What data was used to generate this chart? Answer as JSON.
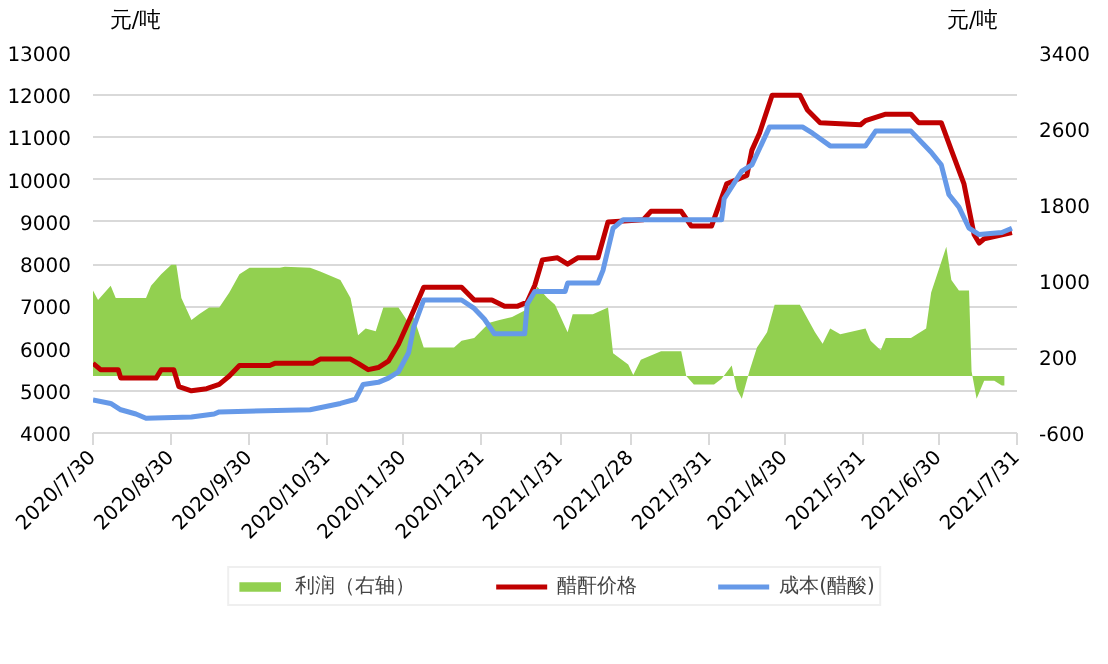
{
  "chart_data": {
    "type": "line",
    "ylabel": "元/吨",
    "y2label": "元/吨",
    "xlim": [
      "2020-07-30",
      "2021-07-31"
    ],
    "xticks": [
      {
        "value": "2020-07-30",
        "label": "2020/7/30"
      },
      {
        "value": "2020-08-30",
        "label": "2020/8/30"
      },
      {
        "value": "2020-09-30",
        "label": "2020/9/30"
      },
      {
        "value": "2020-10-31",
        "label": "2020/10/31"
      },
      {
        "value": "2020-11-30",
        "label": "2020/11/30"
      },
      {
        "value": "2020-12-31",
        "label": "2020/12/31"
      },
      {
        "value": "2021-01-31",
        "label": "2021/1/31"
      },
      {
        "value": "2021-02-28",
        "label": "2021/2/28"
      },
      {
        "value": "2021-03-31",
        "label": "2021/3/31"
      },
      {
        "value": "2021-04-30",
        "label": "2021/4/30"
      },
      {
        "value": "2021-05-31",
        "label": "2021/5/31"
      },
      {
        "value": "2021-06-30",
        "label": "2021/6/30"
      },
      {
        "value": "2021-07-31",
        "label": "2021/7/31"
      }
    ],
    "ylim": [
      4000,
      13000
    ],
    "yticks": [
      4000,
      5000,
      6000,
      7000,
      8000,
      9000,
      10000,
      11000,
      12000,
      13000
    ],
    "y2lim": [
      -600,
      3400
    ],
    "y2ticks": [
      -600,
      200,
      1000,
      1800,
      2600,
      3400
    ],
    "grid": "y",
    "legend": "bottom",
    "series": [
      {
        "name": "利润（右轴）",
        "type": "area",
        "axis": "y2",
        "color": "#92d050",
        "x": [
          "2020-07-30",
          "2020-08-01",
          "2020-08-06",
          "2020-08-08",
          "2020-08-20",
          "2020-08-22",
          "2020-08-26",
          "2020-08-30",
          "2020-09-01",
          "2020-09-03",
          "2020-09-07",
          "2020-09-10",
          "2020-09-14",
          "2020-09-18",
          "2020-09-22",
          "2020-09-26",
          "2020-09-30",
          "2020-10-12",
          "2020-10-14",
          "2020-10-24",
          "2020-10-28",
          "2020-11-05",
          "2020-11-09",
          "2020-11-12",
          "2020-11-15",
          "2020-11-19",
          "2020-11-22",
          "2020-11-28",
          "2020-12-02",
          "2020-12-04",
          "2020-12-08",
          "2020-12-20",
          "2020-12-23",
          "2020-12-28",
          "2021-01-03",
          "2021-01-07",
          "2021-01-12",
          "2021-01-17",
          "2021-01-20",
          "2021-01-22",
          "2021-01-26",
          "2021-01-29",
          "2021-02-03",
          "2021-02-05",
          "2021-02-13",
          "2021-02-19",
          "2021-02-21",
          "2021-02-27",
          "2021-03-01",
          "2021-03-04",
          "2021-03-12",
          "2021-03-20",
          "2021-03-22",
          "2021-03-25",
          "2021-04-02",
          "2021-04-05",
          "2021-04-09",
          "2021-04-11",
          "2021-04-13",
          "2021-04-16",
          "2021-04-19",
          "2021-04-23",
          "2021-04-26",
          "2021-05-06",
          "2021-05-12",
          "2021-05-15",
          "2021-05-18",
          "2021-05-22",
          "2021-06-01",
          "2021-06-03",
          "2021-06-07",
          "2021-06-09",
          "2021-06-19",
          "2021-06-25",
          "2021-06-27",
          "2021-07-03",
          "2021-07-05",
          "2021-07-08",
          "2021-07-12",
          "2021-07-13",
          "2021-07-15",
          "2021-07-18",
          "2021-07-22",
          "2021-07-25",
          "2021-07-26"
        ],
        "values": [
          900,
          800,
          950,
          820,
          820,
          950,
          1070,
          1170,
          1170,
          820,
          590,
          650,
          720,
          720,
          880,
          1070,
          1140,
          1140,
          1150,
          1140,
          1100,
          1010,
          820,
          430,
          500,
          470,
          720,
          720,
          560,
          620,
          300,
          300,
          370,
          400,
          560,
          590,
          620,
          690,
          820,
          940,
          820,
          750,
          460,
          650,
          650,
          720,
          240,
          120,
          10,
          170,
          260,
          260,
          0,
          -90,
          -90,
          -30,
          110,
          -140,
          -240,
          50,
          300,
          460,
          750,
          750,
          460,
          340,
          500,
          440,
          500,
          370,
          270,
          400,
          400,
          500,
          880,
          1360,
          1010,
          900,
          900,
          50,
          -240,
          -50,
          -50,
          -100,
          -100
        ]
      },
      {
        "name": "醋酐价格",
        "color": "#c00000",
        "x": [
          "2020-07-30",
          "2020-08-02",
          "2020-08-09",
          "2020-08-10",
          "2020-08-24",
          "2020-08-26",
          "2020-08-31",
          "2020-09-02",
          "2020-09-07",
          "2020-09-13",
          "2020-09-18",
          "2020-09-22",
          "2020-09-26",
          "2020-10-08",
          "2020-10-10",
          "2020-10-25",
          "2020-10-28",
          "2020-11-09",
          "2020-11-12",
          "2020-11-16",
          "2020-11-20",
          "2020-11-24",
          "2020-11-28",
          "2020-12-04",
          "2020-12-08",
          "2020-12-23",
          "2020-12-28",
          "2021-01-04",
          "2021-01-09",
          "2021-01-14",
          "2021-01-18",
          "2021-01-21",
          "2021-01-24",
          "2021-01-30",
          "2021-02-03",
          "2021-02-07",
          "2021-02-15",
          "2021-02-19",
          "2021-03-05",
          "2021-03-08",
          "2021-03-20",
          "2021-03-24",
          "2021-04-01",
          "2021-04-07",
          "2021-04-15",
          "2021-04-17",
          "2021-04-20",
          "2021-04-25",
          "2021-05-06",
          "2021-05-09",
          "2021-05-14",
          "2021-05-30",
          "2021-06-01",
          "2021-06-09",
          "2021-06-19",
          "2021-06-22",
          "2021-07-01",
          "2021-07-05",
          "2021-07-10",
          "2021-07-14",
          "2021-07-16",
          "2021-07-18",
          "2021-07-29"
        ],
        "values": [
          5650,
          5500,
          5500,
          5300,
          5300,
          5500,
          5500,
          5100,
          5000,
          5050,
          5150,
          5350,
          5600,
          5600,
          5650,
          5650,
          5750,
          5750,
          5650,
          5500,
          5550,
          5700,
          6100,
          6900,
          7450,
          7450,
          7150,
          7150,
          7000,
          7000,
          7100,
          7500,
          8100,
          8150,
          8000,
          8150,
          8150,
          9000,
          9050,
          9250,
          9250,
          8900,
          8900,
          9900,
          10100,
          10700,
          11100,
          12000,
          12000,
          11650,
          11350,
          11300,
          11400,
          11550,
          11550,
          11350,
          11350,
          10700,
          9900,
          8700,
          8500,
          8600,
          8750
        ]
      },
      {
        "name": "成本(醋酸)",
        "color": "#6699e8",
        "x": [
          "2020-07-30",
          "2020-08-06",
          "2020-08-10",
          "2020-08-16",
          "2020-08-20",
          "2020-09-07",
          "2020-09-16",
          "2020-09-18",
          "2020-10-24",
          "2020-11-05",
          "2020-11-11",
          "2020-11-14",
          "2020-11-20",
          "2020-11-24",
          "2020-11-28",
          "2020-12-02",
          "2020-12-04",
          "2020-12-08",
          "2020-12-23",
          "2020-12-28",
          "2021-01-01",
          "2021-01-05",
          "2021-01-17",
          "2021-01-18",
          "2021-01-21",
          "2021-02-02",
          "2021-02-03",
          "2021-02-15",
          "2021-02-17",
          "2021-02-21",
          "2021-02-25",
          "2021-04-05",
          "2021-04-06",
          "2021-04-13",
          "2021-04-17",
          "2021-04-24",
          "2021-05-07",
          "2021-05-11",
          "2021-05-18",
          "2021-06-01",
          "2021-06-05",
          "2021-06-19",
          "2021-06-27",
          "2021-07-01",
          "2021-07-04",
          "2021-07-08",
          "2021-07-12",
          "2021-07-16",
          "2021-07-25",
          "2021-07-29"
        ],
        "values": [
          4780,
          4700,
          4550,
          4450,
          4350,
          4380,
          4450,
          4500,
          4550,
          4700,
          4800,
          5150,
          5200,
          5300,
          5450,
          5900,
          6500,
          7150,
          7150,
          6950,
          6700,
          6350,
          6350,
          7050,
          7350,
          7350,
          7550,
          7550,
          7850,
          8850,
          9050,
          9050,
          9550,
          10200,
          10350,
          11250,
          11250,
          11100,
          10800,
          10800,
          11150,
          11150,
          10650,
          10350,
          9650,
          9350,
          8850,
          8700,
          8750,
          8850
        ]
      }
    ]
  }
}
